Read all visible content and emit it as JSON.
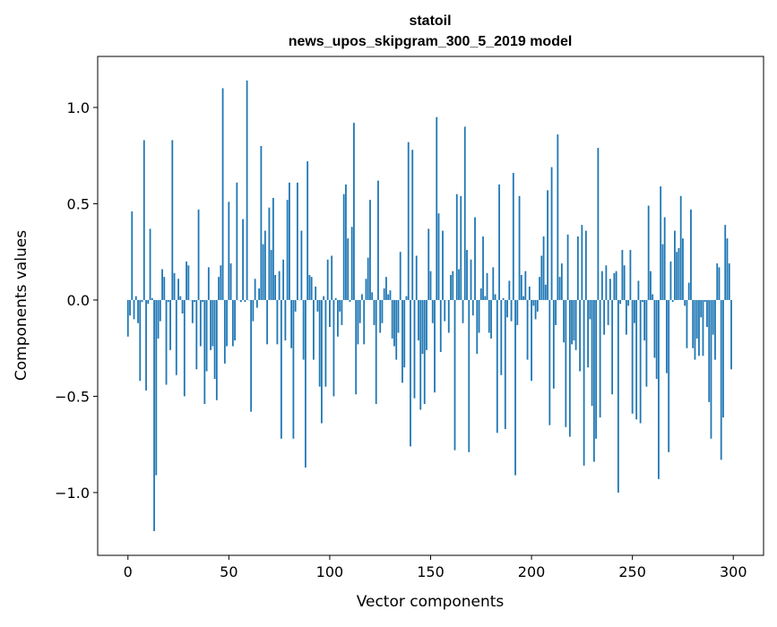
{
  "chart_data": {
    "type": "bar",
    "title": [
      "statoil",
      "news_upos_skipgram_300_5_2019 model"
    ],
    "xlabel": "Vector components",
    "ylabel": "Components values",
    "xlim": [
      -15,
      315
    ],
    "ylim": [
      -1.326,
      1.265
    ],
    "xticks": [
      0,
      50,
      100,
      150,
      200,
      250,
      300
    ],
    "xtick_labels": [
      "0",
      "50",
      "100",
      "150",
      "200",
      "250",
      "300"
    ],
    "yticks": [
      -1.0,
      -0.5,
      0.0,
      0.5,
      1.0
    ],
    "ytick_labels": [
      "−1.0",
      "−0.5",
      "0.0",
      "0.5",
      "1.0"
    ],
    "grid": false,
    "bar_color": "#1f77b4",
    "values": [
      -0.19,
      -0.08,
      0.46,
      -0.1,
      0.02,
      -0.12,
      -0.42,
      -0.01,
      0.83,
      -0.47,
      -0.02,
      0.37,
      0.01,
      -1.2,
      -0.91,
      -0.2,
      -0.11,
      0.16,
      0.12,
      -0.44,
      -0.01,
      -0.26,
      0.83,
      0.14,
      -0.39,
      0.11,
      0.02,
      -0.07,
      -0.5,
      0.2,
      0.18,
      0.0,
      -0.12,
      -0.01,
      -0.36,
      0.47,
      -0.24,
      -0.01,
      -0.54,
      -0.37,
      0.17,
      -0.26,
      -0.24,
      -0.41,
      -0.52,
      0.12,
      0.18,
      1.1,
      -0.33,
      -0.24,
      0.51,
      0.19,
      -0.24,
      -0.21,
      0.61,
      0.0,
      -0.01,
      0.42,
      -0.01,
      1.14,
      0.0,
      -0.58,
      -0.11,
      0.11,
      -0.04,
      0.06,
      0.8,
      0.29,
      0.36,
      -0.23,
      0.48,
      0.26,
      0.53,
      0.13,
      -0.23,
      0.15,
      -0.72,
      0.21,
      -0.21,
      0.52,
      0.61,
      -0.25,
      -0.72,
      -0.06,
      0.61,
      0.0,
      0.36,
      -0.31,
      -0.87,
      0.72,
      0.13,
      0.12,
      -0.31,
      0.07,
      -0.06,
      -0.45,
      -0.64,
      0.02,
      -0.45,
      0.21,
      -0.14,
      0.23,
      -0.5,
      0.01,
      -0.19,
      -0.06,
      -0.13,
      0.55,
      0.6,
      0.32,
      -0.01,
      0.38,
      0.92,
      -0.49,
      -0.23,
      -0.12,
      0.03,
      -0.23,
      0.11,
      0.22,
      0.52,
      0.04,
      -0.13,
      -0.54,
      0.62,
      -0.17,
      -0.12,
      0.06,
      0.12,
      0.03,
      0.05,
      -0.2,
      -0.24,
      -0.31,
      -0.17,
      0.25,
      -0.43,
      -0.35,
      0.02,
      0.82,
      -0.76,
      0.78,
      -0.51,
      0.23,
      -0.21,
      -0.57,
      -0.28,
      -0.54,
      -0.26,
      0.37,
      0.15,
      -0.12,
      -0.48,
      0.95,
      0.45,
      -0.27,
      0.36,
      -0.11,
      0.0,
      -0.17,
      0.13,
      0.15,
      -0.78,
      0.55,
      0.16,
      0.54,
      -0.12,
      0.9,
      0.26,
      -0.79,
      0.21,
      -0.08,
      0.43,
      -0.28,
      -0.17,
      0.06,
      0.33,
      0.02,
      0.14,
      -0.17,
      -0.2,
      0.17,
      0.03,
      -0.69,
      0.6,
      -0.39,
      0.01,
      -0.67,
      -0.09,
      0.1,
      -0.11,
      0.66,
      -0.91,
      -0.13,
      0.54,
      0.13,
      0.02,
      0.15,
      -0.31,
      0.07,
      -0.42,
      -0.03,
      -0.1,
      -0.06,
      0.12,
      0.23,
      0.33,
      0.08,
      0.57,
      -0.65,
      0.69,
      -0.46,
      -0.13,
      0.86,
      0.12,
      0.19,
      -0.22,
      -0.66,
      0.34,
      -0.71,
      -0.23,
      -0.21,
      -0.26,
      0.33,
      -0.37,
      0.39,
      -0.86,
      0.36,
      -0.35,
      -0.1,
      -0.55,
      -0.84,
      -0.72,
      0.79,
      -0.61,
      0.15,
      -0.18,
      0.18,
      -0.13,
      0.11,
      -0.49,
      0.14,
      0.15,
      -1.0,
      -0.02,
      0.26,
      0.18,
      -0.18,
      -0.03,
      0.26,
      -0.59,
      -0.12,
      -0.62,
      0.1,
      -0.64,
      -0.01,
      -0.21,
      -0.45,
      0.49,
      0.15,
      0.03,
      -0.3,
      -0.41,
      -0.93,
      0.59,
      0.29,
      0.43,
      -0.38,
      -0.79,
      0.2,
      -0.01,
      0.36,
      0.25,
      0.27,
      0.54,
      0.32,
      -0.03,
      -0.25,
      0.09,
      0.47,
      -0.25,
      -0.31,
      -0.2,
      -0.29,
      -0.09,
      -0.29,
      -0.01,
      -0.14,
      -0.53,
      -0.72,
      -0.18,
      -0.31,
      0.19,
      0.17,
      -0.83,
      -0.61,
      0.39,
      0.32,
      0.19,
      -0.36
    ]
  }
}
